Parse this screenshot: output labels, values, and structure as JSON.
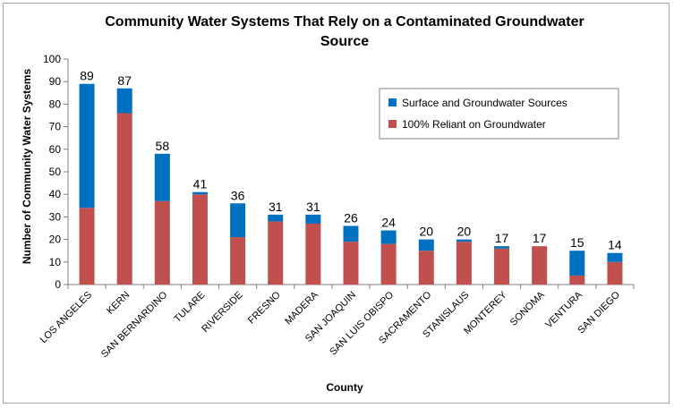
{
  "chart_data": {
    "type": "bar",
    "stacked": true,
    "title_line1": "Community Water Systems That Rely on a Contaminated Groundwater",
    "title_line2": "Source",
    "xlabel": "County",
    "ylabel": "Number of Community Water Systems",
    "ylim": [
      0,
      100
    ],
    "yticks": [
      0,
      10,
      20,
      30,
      40,
      50,
      60,
      70,
      80,
      90,
      100
    ],
    "grid": false,
    "legend_position": "top-right",
    "categories": [
      "LOS ANGELES",
      "KERN",
      "SAN BERNARDINO",
      "TULARE",
      "RIVERSIDE",
      "FRESNO",
      "MADERA",
      "SAN JOAQUIN",
      "SAN LUIS OBISPO",
      "SACRAMENTO",
      "STANISLAUS",
      "MONTEREY",
      "SONOMA",
      "VENTURA",
      "SAN DIEGO"
    ],
    "series": [
      {
        "name": "100% Reliant on Groundwater",
        "color": "#c0504d",
        "values": [
          34,
          76,
          37,
          40,
          21,
          28,
          27,
          19,
          18,
          15,
          19,
          16,
          17,
          4,
          10
        ]
      },
      {
        "name": "Surface and Groundwater Sources",
        "color": "#0070c0",
        "values": [
          55,
          11,
          21,
          1,
          15,
          3,
          4,
          7,
          6,
          5,
          1,
          1,
          0,
          11,
          4
        ]
      }
    ],
    "totals": [
      89,
      87,
      58,
      41,
      36,
      31,
      31,
      26,
      24,
      20,
      20,
      17,
      17,
      15,
      14
    ],
    "legend_order": [
      "Surface and Groundwater Sources",
      "100% Reliant on Groundwater"
    ]
  }
}
